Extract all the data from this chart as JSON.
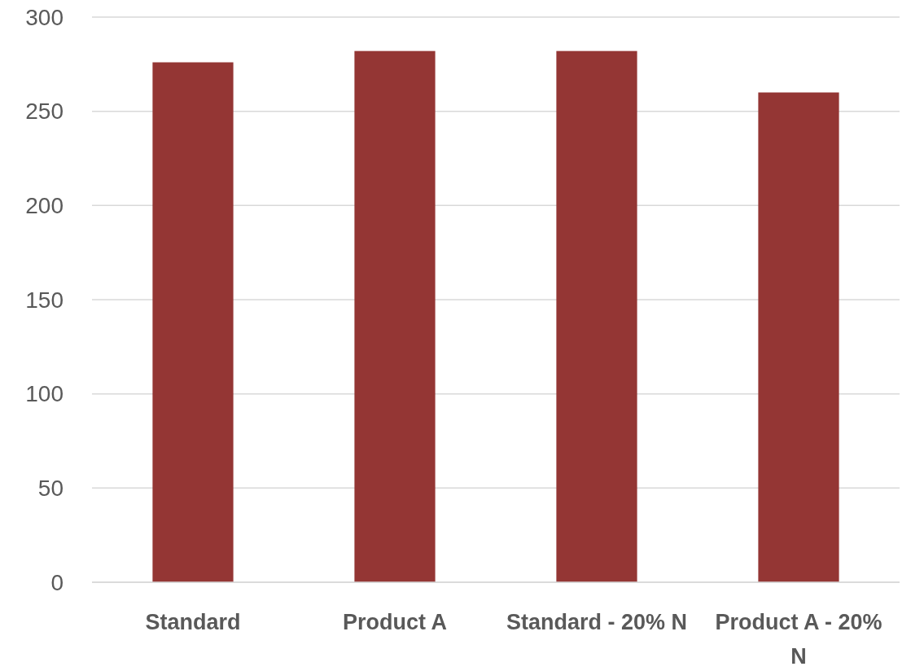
{
  "chart_data": {
    "type": "bar",
    "categories": [
      "Standard",
      "Product A",
      "Standard - 20% N",
      "Product A - 20% N"
    ],
    "values": [
      276,
      282,
      282,
      260
    ],
    "color": "#943634",
    "ylim": [
      0,
      300
    ],
    "yticks": [
      0,
      50,
      100,
      150,
      200,
      250,
      300
    ],
    "grid": "y"
  }
}
